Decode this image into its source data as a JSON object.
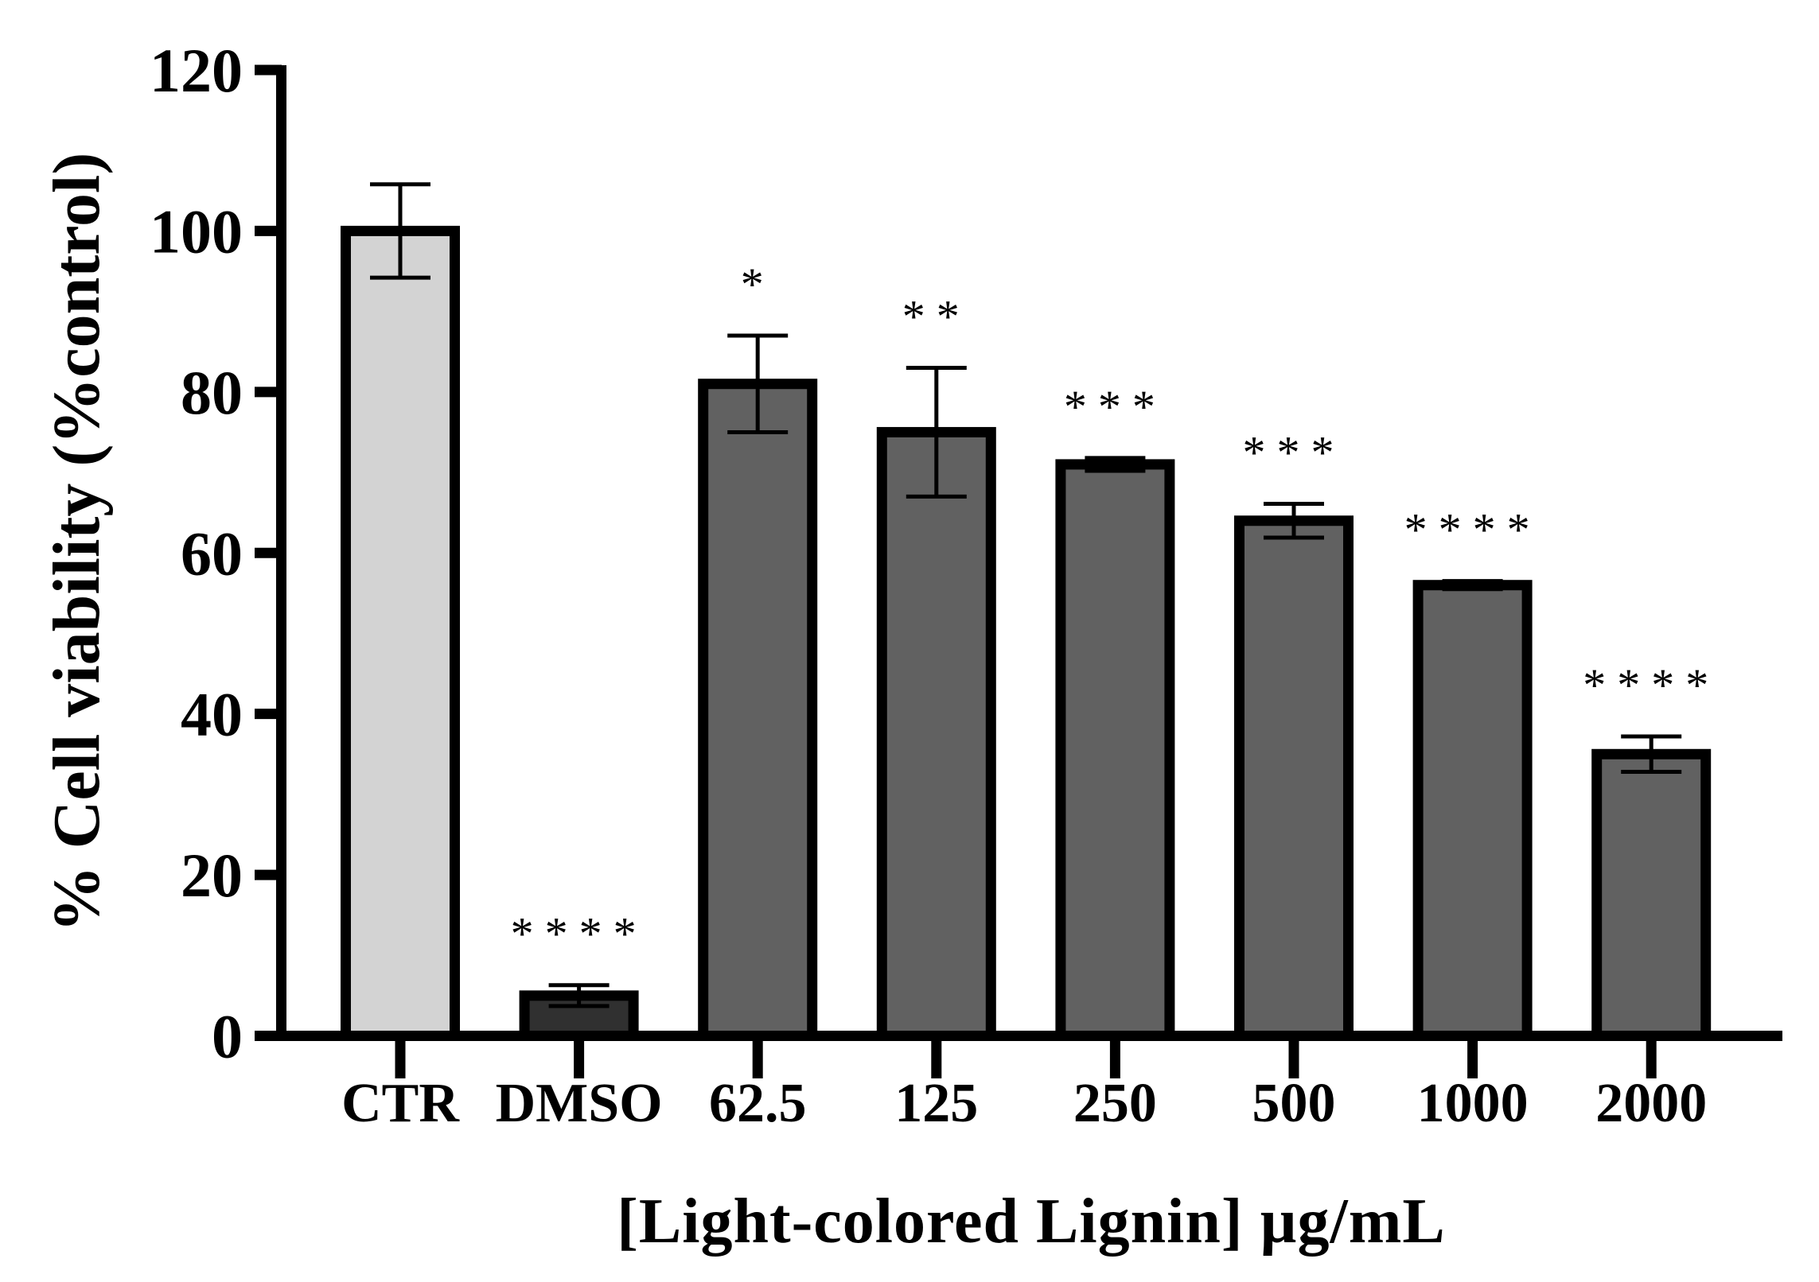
{
  "chart_data": {
    "type": "bar",
    "title": "",
    "xlabel": "[Light-colored Lignin] µg/mL",
    "ylabel": "% Cell viability (%control)",
    "ylim": [
      0,
      120
    ],
    "yticks": [
      0,
      20,
      40,
      60,
      80,
      100,
      120
    ],
    "grid": false,
    "legend": null,
    "categories": [
      "CTR",
      "DMSO",
      "62.5",
      "125",
      "250",
      "500",
      "1000",
      "2000"
    ],
    "values": [
      100,
      5,
      81,
      75,
      71,
      64,
      56,
      35
    ],
    "error_sd": [
      5.8,
      1.3,
      6.0,
      8.0,
      0.8,
      2.1,
      0.5,
      2.2
    ],
    "significance": [
      "",
      "****",
      "*",
      "**",
      "***",
      "***",
      "****",
      "****"
    ],
    "bar_colors": [
      "#D3D3D3",
      "#303030",
      "#616161",
      "#616161",
      "#616161",
      "#616161",
      "#616161",
      "#616161"
    ],
    "bar_edge_color": "#000000"
  }
}
